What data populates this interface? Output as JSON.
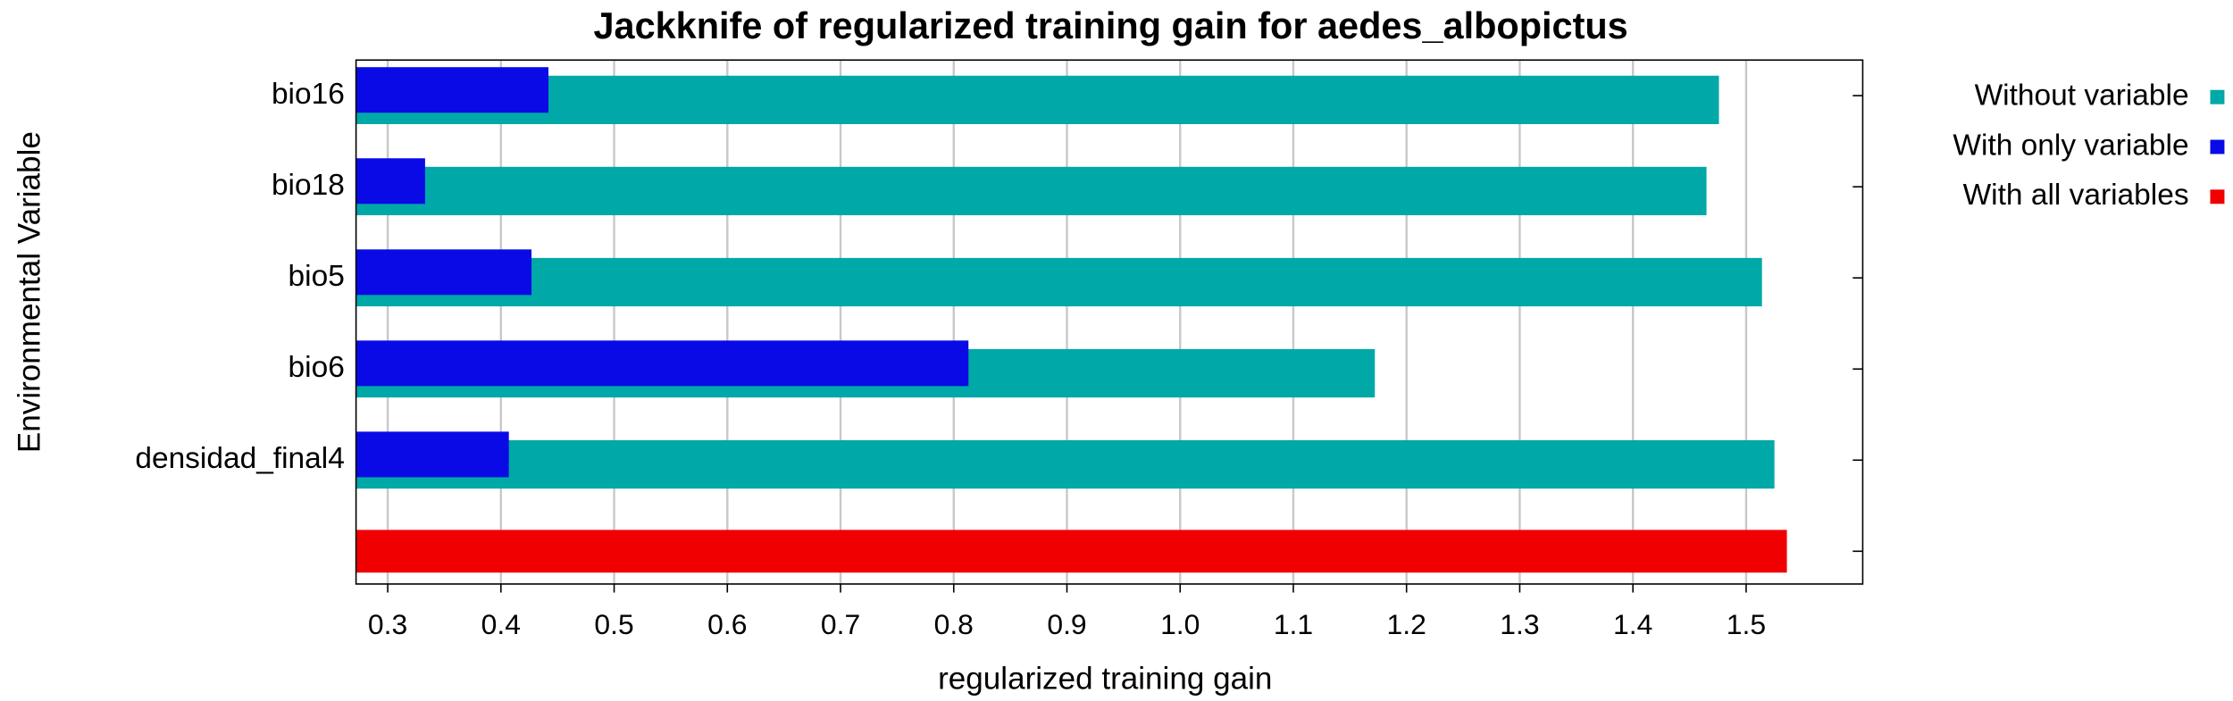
{
  "chart_data": {
    "type": "bar",
    "orientation": "horizontal",
    "title": "Jackknife of regularized training gain for aedes_albopictus",
    "x_label": "regularized training gain",
    "y_label": "Environmental Variable",
    "categories": [
      "bio16",
      "bio18",
      "bio5",
      "bio6",
      "densidad_final4",
      null
    ],
    "series": [
      {
        "name": "Without variable",
        "color": "#00a8a8",
        "values": [
          1.476,
          1.465,
          1.514,
          1.172,
          1.525,
          null
        ]
      },
      {
        "name": "With only variable",
        "color": "#0a0ae6",
        "values": [
          0.442,
          0.333,
          0.427,
          0.813,
          0.407,
          null
        ]
      },
      {
        "name": "With all variables",
        "color": "#f00000",
        "values": [
          null,
          null,
          null,
          null,
          null,
          1.536
        ]
      }
    ],
    "xlim": [
      0.272,
      1.603
    ],
    "xticks": [
      0.3,
      0.4,
      0.5,
      0.6,
      0.7,
      0.8,
      0.9,
      {
        "value": 1,
        "label": "1.0"
      },
      1.1,
      1.2,
      1.3,
      1.4,
      1.5
    ],
    "grid": true,
    "legend": "right"
  }
}
